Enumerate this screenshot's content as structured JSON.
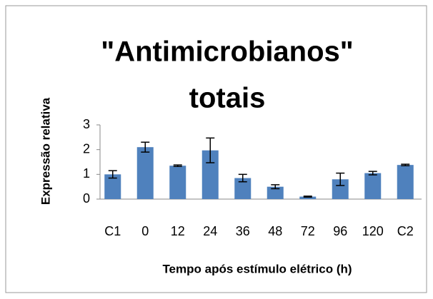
{
  "chart_data": {
    "type": "bar",
    "title": [
      "\"Antimicrobianos\"",
      "totais"
    ],
    "x_label": "Tempo após estímulo elétrico (h)",
    "y_label": "Expressão relativa",
    "categories": [
      "C1",
      "0",
      "12",
      "24",
      "36",
      "48",
      "72",
      "96",
      "120",
      "C2"
    ],
    "values": [
      1.0,
      2.1,
      1.35,
      1.97,
      0.85,
      0.5,
      0.1,
      0.8,
      1.05,
      1.38
    ],
    "errors": [
      0.15,
      0.2,
      0.03,
      0.5,
      0.15,
      0.08,
      0.02,
      0.25,
      0.07,
      0.03
    ],
    "color": "#4f81bd",
    "ylim": [
      0,
      3
    ],
    "yticks": [
      0,
      1,
      2,
      3
    ],
    "grid": false
  }
}
